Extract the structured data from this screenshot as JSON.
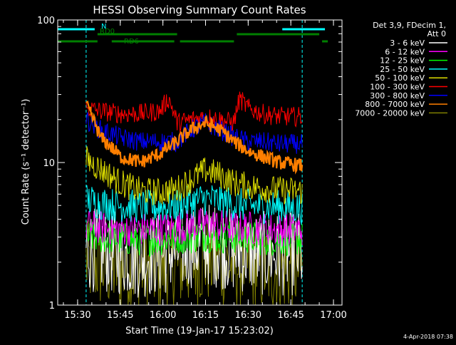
{
  "chart_data": {
    "type": "line",
    "title": "HESSI Observing Summary Count Rates",
    "xlabel": "Start Time (19-Jan-17 15:23:02)",
    "ylabel": "Count Rate (s⁻¹ detector⁻¹)",
    "yscale": "log",
    "ylim": [
      1,
      100
    ],
    "xlim": [
      "15:23",
      "17:03"
    ],
    "x_ticks": [
      "15:30",
      "15:45",
      "16:00",
      "16:15",
      "16:30",
      "16:45",
      "17:00"
    ],
    "y_ticks": [
      "1",
      "10",
      "100"
    ],
    "legend": {
      "position": "top-right",
      "header": [
        "Det 3,9, FDecim 1,",
        "Att 0"
      ]
    },
    "timestamp": "4-Apr-2018 07:38",
    "data_gap_start": "15:33",
    "data_gap_end": "16:49",
    "flags": [
      {
        "name": "N",
        "color": "#00ffff",
        "segments": [
          [
            "15:23",
            "15:36"
          ],
          [
            "16:42",
            "16:57"
          ]
        ]
      },
      {
        "name": "RD0",
        "color": "#007f00",
        "segments": [
          [
            "15:37",
            "16:05"
          ],
          [
            "16:26",
            "16:55"
          ]
        ]
      },
      {
        "name": "RD6",
        "color": "#007f00",
        "segments": [
          [
            "15:23",
            "15:37"
          ],
          [
            "15:42",
            "16:04"
          ],
          [
            "16:06",
            "16:25"
          ],
          [
            "16:56",
            "16:58"
          ]
        ]
      }
    ],
    "series": [
      {
        "name": "3 - 6 keV",
        "color": "#ffffff",
        "x": [
          "15:33",
          "15:38",
          "15:45",
          "15:52",
          "15:59",
          "16:05",
          "16:10",
          "16:15",
          "16:20",
          "16:25",
          "16:30",
          "16:35",
          "16:41",
          "16:49"
        ],
        "y": [
          2.5,
          2.4,
          2.3,
          2.2,
          2.3,
          2.4,
          2.6,
          2.7,
          2.6,
          2.4,
          2.4,
          2.3,
          2.3,
          2.3
        ]
      },
      {
        "name": "6 - 12 keV",
        "color": "#ff00ff",
        "x": [
          "15:33",
          "15:38",
          "15:45",
          "15:52",
          "15:59",
          "16:05",
          "16:10",
          "16:15",
          "16:20",
          "16:25",
          "16:30",
          "16:35",
          "16:41",
          "16:49"
        ],
        "y": [
          3.6,
          3.5,
          3.4,
          3.4,
          3.4,
          3.5,
          3.6,
          3.7,
          3.6,
          3.5,
          3.5,
          3.4,
          3.4,
          3.4
        ]
      },
      {
        "name": "12 - 25 keV",
        "color": "#00ff00",
        "x": [
          "15:33",
          "15:38",
          "15:45",
          "15:52",
          "15:59",
          "16:05",
          "16:10",
          "16:15",
          "16:20",
          "16:25",
          "16:30",
          "16:35",
          "16:41",
          "16:49"
        ],
        "y": [
          3.0,
          3.0,
          2.9,
          2.9,
          2.9,
          3.0,
          3.0,
          3.1,
          3.0,
          3.0,
          3.0,
          2.9,
          2.9,
          2.9
        ]
      },
      {
        "name": "25 - 50 keV",
        "color": "#00ffff",
        "x": [
          "15:33",
          "15:38",
          "15:45",
          "15:52",
          "15:59",
          "16:05",
          "16:10",
          "16:15",
          "16:20",
          "16:25",
          "16:30",
          "16:35",
          "16:41",
          "16:49"
        ],
        "y": [
          5.5,
          5.2,
          5.0,
          4.9,
          4.9,
          5.0,
          5.3,
          5.6,
          5.4,
          5.1,
          5.0,
          4.9,
          4.9,
          4.8
        ]
      },
      {
        "name": "50 - 100 keV",
        "color": "#dddd00",
        "x": [
          "15:33",
          "15:38",
          "15:45",
          "15:52",
          "15:59",
          "16:05",
          "16:10",
          "16:15",
          "16:20",
          "16:25",
          "16:30",
          "16:35",
          "16:41",
          "16:49"
        ],
        "y": [
          10.5,
          9.0,
          7.2,
          6.3,
          6.2,
          6.5,
          7.6,
          8.8,
          8.2,
          7.2,
          6.8,
          6.6,
          6.4,
          6.3
        ]
      },
      {
        "name": "100 - 300 keV",
        "color": "#ff0000",
        "x": [
          "15:33",
          "15:38",
          "15:45",
          "15:52",
          "15:59",
          "16:02",
          "16:05",
          "16:10",
          "16:15",
          "16:20",
          "16:25",
          "16:27",
          "16:30",
          "16:35",
          "16:41",
          "16:49"
        ],
        "y": [
          24,
          23,
          22,
          22,
          23,
          28,
          19,
          20,
          21,
          20,
          19,
          28,
          24,
          22,
          21,
          21
        ]
      },
      {
        "name": "300 - 800 keV",
        "color": "#0000ff",
        "x": [
          "15:33",
          "15:38",
          "15:45",
          "15:52",
          "15:59",
          "16:05",
          "16:10",
          "16:15",
          "16:20",
          "16:25",
          "16:30",
          "16:35",
          "16:41",
          "16:49"
        ],
        "y": [
          20,
          17,
          15,
          14,
          14,
          14,
          17,
          19,
          17,
          15,
          14,
          14,
          13.5,
          13.5
        ]
      },
      {
        "name": "800 - 7000 keV",
        "color": "#ff7f00",
        "x": [
          "15:33",
          "15:38",
          "15:45",
          "15:52",
          "15:59",
          "16:05",
          "16:10",
          "16:15",
          "16:20",
          "16:25",
          "16:30",
          "16:35",
          "16:41",
          "16:49"
        ],
        "y": [
          25,
          15,
          11,
          10,
          11.5,
          14,
          17,
          19,
          17,
          14,
          12,
          11,
          10,
          9.5
        ]
      },
      {
        "name": "7000 - 20000 keV",
        "color": "#7f7f00",
        "x": [
          "15:33",
          "15:38",
          "15:45",
          "15:52",
          "15:59",
          "16:05",
          "16:10",
          "16:15",
          "16:20",
          "16:25",
          "16:30",
          "16:35",
          "16:41",
          "16:49"
        ],
        "y": [
          2.0,
          1.9,
          1.8,
          1.8,
          1.8,
          1.9,
          2.0,
          2.1,
          2.0,
          1.9,
          1.9,
          1.8,
          1.8,
          1.8
        ]
      }
    ]
  }
}
